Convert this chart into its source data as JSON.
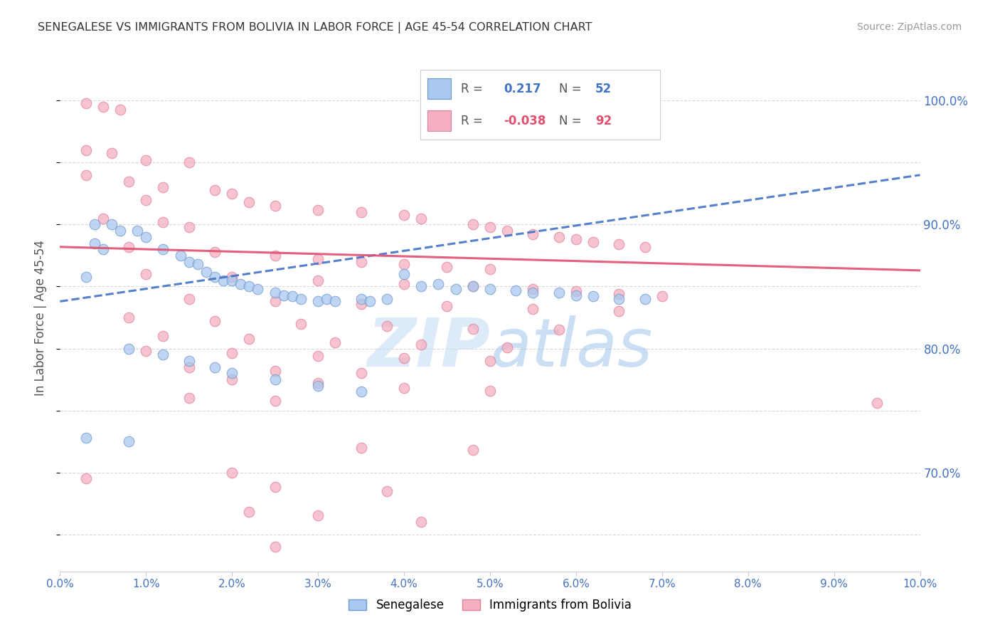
{
  "title": "SENEGALESE VS IMMIGRANTS FROM BOLIVIA IN LABOR FORCE | AGE 45-54 CORRELATION CHART",
  "source": "Source: ZipAtlas.com",
  "ylabel": "In Labor Force | Age 45-54",
  "xlim": [
    0.0,
    0.1
  ],
  "ylim": [
    0.62,
    1.03
  ],
  "color_blue": "#a8c8f0",
  "color_pink": "#f4afc0",
  "color_blue_edge": "#7099cc",
  "color_pink_edge": "#e080a0",
  "line_blue": "#4472c4",
  "line_pink": "#e05070",
  "background_color": "#ffffff",
  "grid_color": "#d8d8d8",
  "senegalese_points": [
    [
      0.003,
      0.858
    ],
    [
      0.004,
      0.9
    ],
    [
      0.004,
      0.885
    ],
    [
      0.005,
      0.88
    ],
    [
      0.006,
      0.9
    ],
    [
      0.007,
      0.895
    ],
    [
      0.009,
      0.895
    ],
    [
      0.01,
      0.89
    ],
    [
      0.012,
      0.88
    ],
    [
      0.014,
      0.875
    ],
    [
      0.015,
      0.87
    ],
    [
      0.016,
      0.868
    ],
    [
      0.017,
      0.862
    ],
    [
      0.018,
      0.858
    ],
    [
      0.019,
      0.855
    ],
    [
      0.02,
      0.855
    ],
    [
      0.021,
      0.852
    ],
    [
      0.022,
      0.85
    ],
    [
      0.023,
      0.848
    ],
    [
      0.025,
      0.845
    ],
    [
      0.026,
      0.843
    ],
    [
      0.027,
      0.842
    ],
    [
      0.028,
      0.84
    ],
    [
      0.03,
      0.838
    ],
    [
      0.031,
      0.84
    ],
    [
      0.032,
      0.838
    ],
    [
      0.035,
      0.84
    ],
    [
      0.036,
      0.838
    ],
    [
      0.038,
      0.84
    ],
    [
      0.04,
      0.86
    ],
    [
      0.042,
      0.85
    ],
    [
      0.044,
      0.852
    ],
    [
      0.046,
      0.848
    ],
    [
      0.048,
      0.85
    ],
    [
      0.05,
      0.848
    ],
    [
      0.053,
      0.847
    ],
    [
      0.055,
      0.845
    ],
    [
      0.058,
      0.845
    ],
    [
      0.06,
      0.843
    ],
    [
      0.062,
      0.842
    ],
    [
      0.065,
      0.84
    ],
    [
      0.068,
      0.84
    ],
    [
      0.008,
      0.8
    ],
    [
      0.012,
      0.795
    ],
    [
      0.015,
      0.79
    ],
    [
      0.018,
      0.785
    ],
    [
      0.02,
      0.78
    ],
    [
      0.025,
      0.775
    ],
    [
      0.03,
      0.77
    ],
    [
      0.035,
      0.765
    ],
    [
      0.003,
      0.728
    ],
    [
      0.008,
      0.725
    ]
  ],
  "bolivia_points": [
    [
      0.003,
      0.998
    ],
    [
      0.005,
      0.995
    ],
    [
      0.007,
      0.993
    ],
    [
      0.003,
      0.96
    ],
    [
      0.006,
      0.958
    ],
    [
      0.01,
      0.952
    ],
    [
      0.015,
      0.95
    ],
    [
      0.003,
      0.94
    ],
    [
      0.008,
      0.935
    ],
    [
      0.012,
      0.93
    ],
    [
      0.018,
      0.928
    ],
    [
      0.02,
      0.925
    ],
    [
      0.01,
      0.92
    ],
    [
      0.022,
      0.918
    ],
    [
      0.025,
      0.915
    ],
    [
      0.03,
      0.912
    ],
    [
      0.035,
      0.91
    ],
    [
      0.04,
      0.908
    ],
    [
      0.005,
      0.905
    ],
    [
      0.012,
      0.902
    ],
    [
      0.042,
      0.905
    ],
    [
      0.015,
      0.898
    ],
    [
      0.048,
      0.9
    ],
    [
      0.05,
      0.898
    ],
    [
      0.052,
      0.895
    ],
    [
      0.055,
      0.892
    ],
    [
      0.058,
      0.89
    ],
    [
      0.06,
      0.888
    ],
    [
      0.062,
      0.886
    ],
    [
      0.065,
      0.884
    ],
    [
      0.008,
      0.882
    ],
    [
      0.018,
      0.878
    ],
    [
      0.025,
      0.875
    ],
    [
      0.03,
      0.872
    ],
    [
      0.035,
      0.87
    ],
    [
      0.04,
      0.868
    ],
    [
      0.045,
      0.866
    ],
    [
      0.05,
      0.864
    ],
    [
      0.068,
      0.882
    ],
    [
      0.01,
      0.86
    ],
    [
      0.02,
      0.858
    ],
    [
      0.03,
      0.855
    ],
    [
      0.04,
      0.852
    ],
    [
      0.048,
      0.85
    ],
    [
      0.055,
      0.848
    ],
    [
      0.06,
      0.846
    ],
    [
      0.065,
      0.844
    ],
    [
      0.07,
      0.842
    ],
    [
      0.015,
      0.84
    ],
    [
      0.025,
      0.838
    ],
    [
      0.035,
      0.836
    ],
    [
      0.045,
      0.834
    ],
    [
      0.055,
      0.832
    ],
    [
      0.065,
      0.83
    ],
    [
      0.008,
      0.825
    ],
    [
      0.018,
      0.822
    ],
    [
      0.028,
      0.82
    ],
    [
      0.038,
      0.818
    ],
    [
      0.048,
      0.816
    ],
    [
      0.058,
      0.815
    ],
    [
      0.012,
      0.81
    ],
    [
      0.022,
      0.808
    ],
    [
      0.032,
      0.805
    ],
    [
      0.042,
      0.803
    ],
    [
      0.052,
      0.801
    ],
    [
      0.01,
      0.798
    ],
    [
      0.02,
      0.796
    ],
    [
      0.03,
      0.794
    ],
    [
      0.04,
      0.792
    ],
    [
      0.05,
      0.79
    ],
    [
      0.015,
      0.785
    ],
    [
      0.025,
      0.782
    ],
    [
      0.035,
      0.78
    ],
    [
      0.02,
      0.775
    ],
    [
      0.03,
      0.772
    ],
    [
      0.04,
      0.768
    ],
    [
      0.05,
      0.766
    ],
    [
      0.015,
      0.76
    ],
    [
      0.025,
      0.758
    ],
    [
      0.003,
      0.695
    ],
    [
      0.02,
      0.7
    ],
    [
      0.035,
      0.72
    ],
    [
      0.048,
      0.718
    ],
    [
      0.025,
      0.688
    ],
    [
      0.038,
      0.685
    ],
    [
      0.022,
      0.668
    ],
    [
      0.03,
      0.665
    ],
    [
      0.042,
      0.66
    ],
    [
      0.025,
      0.64
    ],
    [
      0.095,
      0.756
    ]
  ],
  "watermark_zip": "ZIP",
  "watermark_atlas": "atlas",
  "watermark_color_zip": "#c0d8f0",
  "watermark_color_atlas": "#a0c0e8"
}
